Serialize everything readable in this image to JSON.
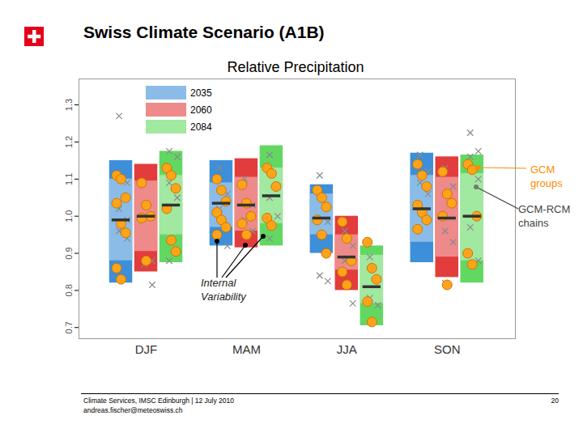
{
  "header": {
    "title": "Swiss Climate Scenario (A1B)"
  },
  "footer": {
    "event": "Climate Services, IMSC Edinburgh | 12 July 2010",
    "contact": "andreas.fischer@meteoswiss.ch",
    "page": 20
  },
  "chart_data": {
    "type": "box",
    "title": "Relative Precipitation",
    "categories": [
      "DJF",
      "MAM",
      "JJA",
      "SON"
    ],
    "ylim": [
      0.67,
      1.37
    ],
    "yticks": [
      0.7,
      0.8,
      0.9,
      {
        "value": 1,
        "label": "1.0"
      },
      1.1,
      1.2,
      1.3
    ],
    "grid": false,
    "legend": "upper left",
    "annotations": [
      "GCM groups",
      "GCM-RCM chains",
      "Internal Variability"
    ],
    "series": [
      {
        "name": "2035",
        "color": "#3d8fd9",
        "values": [
          {
            "outer": [
              0.82,
              1.15
            ],
            "inner": [
              0.88,
              1.1
            ],
            "median": 0.99,
            "gcm_groups": [
              1.11,
              1.1,
              1.05,
              1.035,
              0.98,
              0.955,
              0.86,
              0.83
            ],
            "gcm_rcm_chains": [
              1.27,
              1.09,
              1.02,
              0.99,
              0.96,
              0.94
            ]
          },
          {
            "outer": [
              0.92,
              1.15
            ],
            "inner": [
              0.97,
              1.09
            ],
            "median": 1.035,
            "gcm_groups": [
              1.1,
              1.07,
              1.04,
              1.01,
              0.99,
              0.97,
              0.95
            ],
            "gcm_rcm_chains": [
              1.13,
              1.06,
              1.02,
              0.92
            ]
          },
          {
            "outer": [
              0.9,
              1.085
            ],
            "inner": [
              0.95,
              1.06
            ],
            "median": 0.995,
            "gcm_groups": [
              1.07,
              1.05,
              1.025,
              0.99,
              0.95,
              0.9
            ],
            "gcm_rcm_chains": [
              1.11,
              0.985,
              0.84,
              0.825
            ]
          },
          {
            "outer": [
              0.875,
              1.17
            ],
            "inner": [
              0.93,
              1.11
            ],
            "median": 1.02,
            "gcm_groups": [
              1.14,
              1.11,
              1.08,
              1.03,
              1.01,
              0.99,
              0.965
            ],
            "gcm_rcm_chains": [
              1.165,
              1.12,
              1.09,
              1.06
            ]
          }
        ]
      },
      {
        "name": "2060",
        "color": "#e23c3c",
        "values": [
          {
            "outer": [
              0.85,
              1.14
            ],
            "inner": [
              0.905,
              1.095
            ],
            "median": 1.0,
            "gcm_groups": [
              1.09,
              1.03,
              1.0,
              0.995,
              0.88
            ],
            "gcm_rcm_chains": [
              1.0,
              0.88,
              0.87,
              0.815
            ]
          },
          {
            "outer": [
              0.915,
              1.155
            ],
            "inner": [
              0.96,
              1.105
            ],
            "median": 1.03,
            "gcm_groups": [
              1.085,
              1.035,
              1.0,
              0.98,
              0.95
            ],
            "gcm_rcm_chains": [
              1.1,
              1.03,
              0.99,
              0.96
            ]
          },
          {
            "outer": [
              0.8,
              1.0
            ],
            "inner": [
              0.855,
              0.95
            ],
            "median": 0.89,
            "gcm_groups": [
              0.985,
              0.94,
              0.88,
              0.85,
              0.815
            ],
            "gcm_rcm_chains": [
              0.96,
              0.92,
              0.88,
              0.765
            ]
          },
          {
            "outer": [
              0.835,
              1.16
            ],
            "inner": [
              0.89,
              1.105
            ],
            "median": 0.995,
            "gcm_groups": [
              1.12,
              1.06,
              1.035,
              1.0,
              0.815
            ],
            "gcm_rcm_chains": [
              1.13,
              1.08,
              0.96,
              0.93,
              0.82
            ]
          }
        ]
      },
      {
        "name": "2084",
        "color": "#62d862",
        "values": [
          {
            "outer": [
              0.875,
              1.175
            ],
            "inner": [
              0.95,
              1.11
            ],
            "median": 1.03,
            "gcm_groups": [
              1.13,
              1.11,
              1.075,
              1.02,
              0.935,
              0.905
            ],
            "gcm_rcm_chains": [
              1.175,
              1.16,
              1.09,
              1.05,
              0.88
            ]
          },
          {
            "outer": [
              0.92,
              1.19
            ],
            "inner": [
              0.98,
              1.13
            ],
            "median": 1.055,
            "gcm_groups": [
              1.13,
              1.115,
              1.08,
              0.995,
              0.975
            ],
            "gcm_rcm_chains": [
              1.165,
              1.08,
              1.05,
              1.0,
              0.94
            ]
          },
          {
            "outer": [
              0.705,
              0.92
            ],
            "inner": [
              0.765,
              0.895
            ],
            "median": 0.81,
            "gcm_groups": [
              0.93,
              0.86,
              0.83,
              0.77,
              0.715
            ],
            "gcm_rcm_chains": [
              0.89,
              0.83,
              0.78,
              0.76
            ]
          },
          {
            "outer": [
              0.82,
              1.165
            ],
            "inner": [
              0.88,
              1.115
            ],
            "median": 1.0,
            "gcm_groups": [
              1.14,
              1.125,
              1.0,
              0.9,
              0.87
            ],
            "gcm_rcm_chains": [
              1.225,
              1.175,
              1.16,
              1.1,
              0.97,
              0.88
            ]
          }
        ]
      }
    ]
  }
}
